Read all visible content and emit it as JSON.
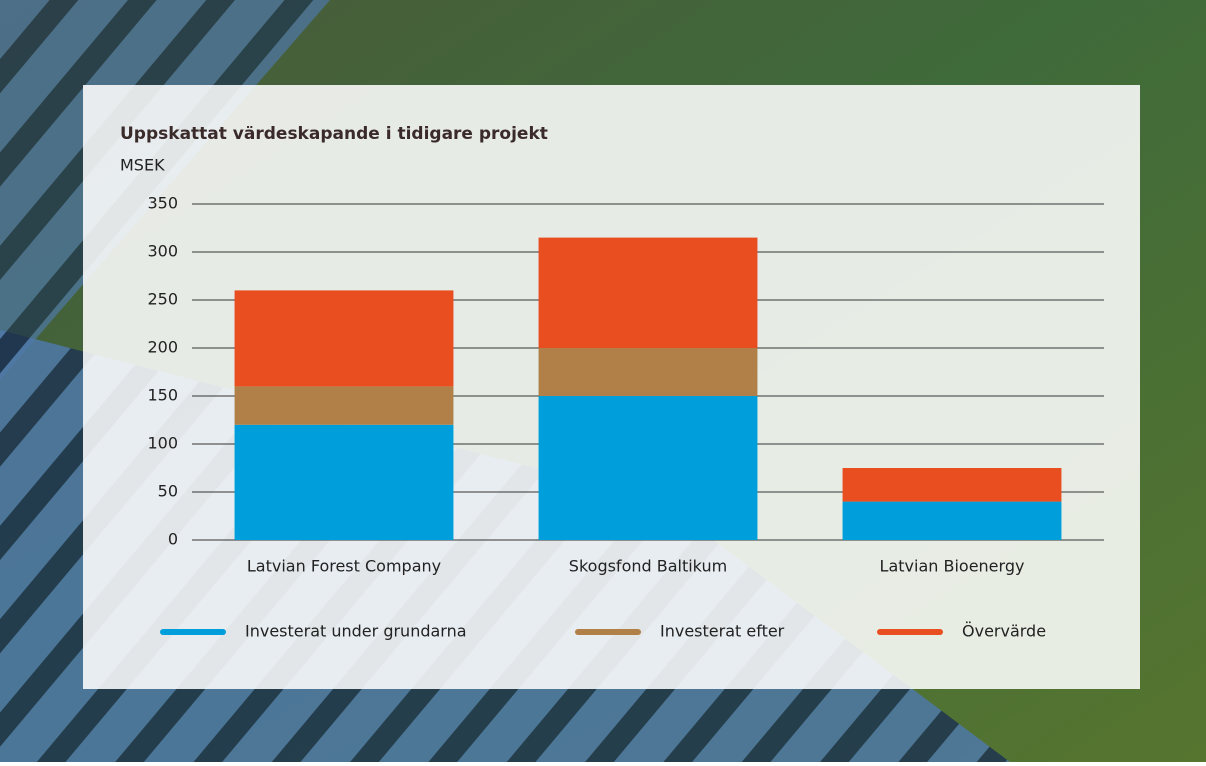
{
  "chart_data": {
    "type": "stacked-bar",
    "title": "Uppskattat värdeskapande i tidigare projekt",
    "y_label": "MSEK",
    "categories": [
      "Latvian Forest Company",
      "Skogsfond Baltikum",
      "Latvian Bioenergy"
    ],
    "series": [
      {
        "name": "Investerat under grundarna",
        "color": "#009edb",
        "values": [
          120,
          150,
          40
        ]
      },
      {
        "name": "Investerat efter",
        "color": "#b08048",
        "values": [
          40,
          50,
          0
        ]
      },
      {
        "name": "Övervärde",
        "color": "#e84e1f",
        "values": [
          100,
          115,
          35
        ]
      }
    ],
    "ylim": [
      0,
      350
    ],
    "yticks": [
      0,
      50,
      100,
      150,
      200,
      250,
      300,
      350
    ],
    "grid": true,
    "legend": "bottom"
  }
}
